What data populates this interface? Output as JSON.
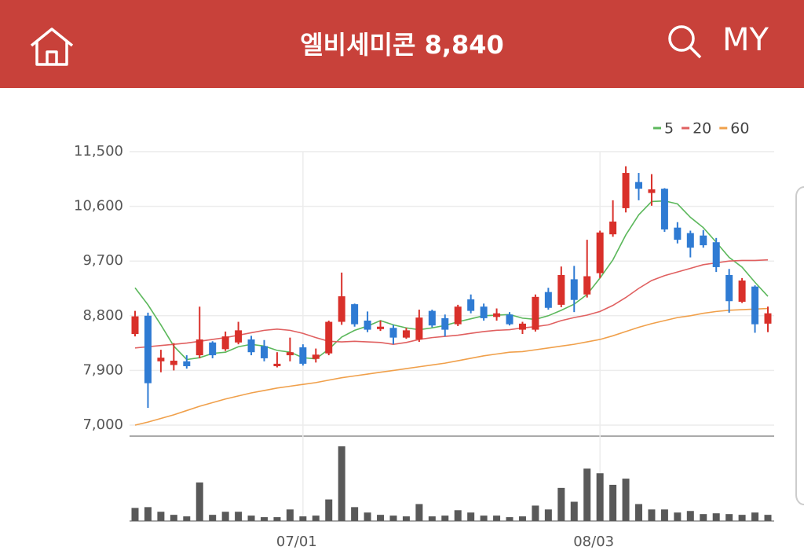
{
  "header": {
    "title": "엘비세미콘",
    "price": "8,840",
    "my": "MY"
  },
  "chart_data": {
    "type": "candlestick",
    "categories": [
      null,
      null,
      null,
      null,
      null,
      null,
      null,
      null,
      null,
      null,
      null,
      null,
      null,
      "07/01",
      null,
      null,
      null,
      null,
      null,
      null,
      null,
      null,
      null,
      null,
      null,
      null,
      null,
      null,
      null,
      null,
      null,
      null,
      null,
      null,
      null,
      null,
      "08/03",
      null,
      null,
      null,
      null,
      null,
      null,
      null,
      null,
      null,
      null,
      null,
      null,
      null
    ],
    "open": [
      8500,
      8800,
      8050,
      7990,
      8050,
      8150,
      8360,
      8250,
      8360,
      8410,
      8300,
      7970,
      8150,
      8280,
      8090,
      8180,
      8700,
      8990,
      8720,
      8580,
      8600,
      8440,
      8410,
      8880,
      8760,
      8660,
      9070,
      8950,
      8780,
      8820,
      8570,
      8570,
      9190,
      8980,
      9400,
      9150,
      9500,
      10140,
      10570,
      11000,
      10820,
      10890,
      10250,
      10160,
      10120,
      10010,
      9470,
      9030,
      9280,
      8670
    ],
    "high": [
      8880,
      8850,
      8240,
      8350,
      8150,
      8950,
      8380,
      8540,
      8700,
      8470,
      8400,
      8200,
      8440,
      8330,
      8260,
      8720,
      9510,
      9000,
      8870,
      8720,
      8650,
      8600,
      8900,
      8900,
      8820,
      8980,
      9150,
      9000,
      8920,
      8860,
      8700,
      9150,
      9260,
      9610,
      9620,
      10050,
      10200,
      10700,
      11260,
      11150,
      11130,
      10900,
      10340,
      10200,
      10210,
      10080,
      9570,
      9420,
      9300,
      8950
    ],
    "low": [
      8460,
      7285,
      7870,
      7900,
      7930,
      8100,
      8100,
      8220,
      8330,
      8150,
      8050,
      7950,
      8050,
      7980,
      8030,
      8150,
      8650,
      8620,
      8530,
      8550,
      8330,
      8420,
      8370,
      8610,
      8460,
      8630,
      8840,
      8720,
      8720,
      8640,
      8500,
      8540,
      8900,
      8940,
      8860,
      9100,
      9420,
      10100,
      10500,
      10700,
      10610,
      10180,
      9990,
      9760,
      9920,
      9520,
      8850,
      9010,
      8520,
      8530
    ],
    "close": [
      8790,
      7690,
      8110,
      8060,
      7970,
      8410,
      8150,
      8460,
      8560,
      8200,
      8100,
      8010,
      8200,
      8010,
      8160,
      8700,
      9120,
      8660,
      8570,
      8620,
      8440,
      8560,
      8770,
      8640,
      8570,
      8950,
      8880,
      8760,
      8840,
      8660,
      8670,
      9110,
      8930,
      9470,
      9060,
      9450,
      10170,
      10350,
      11150,
      10890,
      10880,
      10220,
      10050,
      9920,
      9960,
      9600,
      9040,
      9380,
      8660,
      8840
    ],
    "up_color": "#d9302a",
    "down_color": "#2f7bd3",
    "ylim": [
      7000,
      11500
    ],
    "yticks": [
      {
        "value": 7000,
        "label": "7,000"
      },
      {
        "value": 7900,
        "label": "7,900"
      },
      {
        "value": 8800,
        "label": "8,800"
      },
      {
        "value": 9700,
        "label": "9,700"
      },
      {
        "value": 10600,
        "label": "10,600"
      },
      {
        "value": 11500,
        "label": "11,500"
      }
    ],
    "grid": true,
    "legend": "top-right",
    "series": [
      {
        "name": "5",
        "color": "#5cb85c",
        "values": [
          9260,
          8980,
          8650,
          8300,
          8080,
          8110,
          8180,
          8200,
          8290,
          8330,
          8300,
          8230,
          8200,
          8110,
          8090,
          8250,
          8450,
          8560,
          8630,
          8720,
          8650,
          8600,
          8570,
          8600,
          8640,
          8700,
          8750,
          8800,
          8810,
          8820,
          8760,
          8740,
          8800,
          8890,
          8990,
          9150,
          9420,
          9720,
          10130,
          10460,
          10680,
          10690,
          10640,
          10420,
          10250,
          10010,
          9760,
          9600,
          9350,
          9120
        ]
      },
      {
        "name": "20",
        "color": "#e06060",
        "values": [
          8270,
          8290,
          8310,
          8330,
          8350,
          8380,
          8410,
          8440,
          8480,
          8520,
          8560,
          8580,
          8560,
          8510,
          8440,
          8380,
          8370,
          8380,
          8370,
          8360,
          8330,
          8360,
          8410,
          8440,
          8460,
          8480,
          8510,
          8540,
          8560,
          8570,
          8600,
          8620,
          8650,
          8720,
          8770,
          8810,
          8870,
          8970,
          9100,
          9250,
          9380,
          9460,
          9520,
          9580,
          9640,
          9670,
          9700,
          9710,
          9710,
          9720
        ]
      },
      {
        "name": "60",
        "color": "#f0a04b",
        "values": [
          7000,
          7050,
          7110,
          7170,
          7240,
          7310,
          7370,
          7430,
          7480,
          7530,
          7570,
          7610,
          7640,
          7670,
          7700,
          7740,
          7780,
          7810,
          7840,
          7870,
          7900,
          7930,
          7960,
          7990,
          8020,
          8060,
          8100,
          8140,
          8170,
          8200,
          8210,
          8240,
          8270,
          8300,
          8330,
          8370,
          8410,
          8470,
          8540,
          8610,
          8670,
          8720,
          8770,
          8800,
          8840,
          8870,
          8890,
          8900,
          8910,
          8920
        ]
      }
    ],
    "volume": {
      "color": "#595959",
      "ylim": [
        0,
        100
      ],
      "values": [
        17,
        18,
        12,
        8,
        6,
        50,
        8,
        12,
        12,
        7,
        5,
        5,
        15,
        6,
        7,
        28,
        97,
        18,
        11,
        8,
        7,
        6,
        22,
        6,
        7,
        14,
        11,
        7,
        7,
        5,
        6,
        20,
        15,
        43,
        25,
        68,
        62,
        47,
        55,
        22,
        15,
        15,
        11,
        13,
        9,
        10,
        9,
        8,
        11,
        8
      ]
    }
  }
}
